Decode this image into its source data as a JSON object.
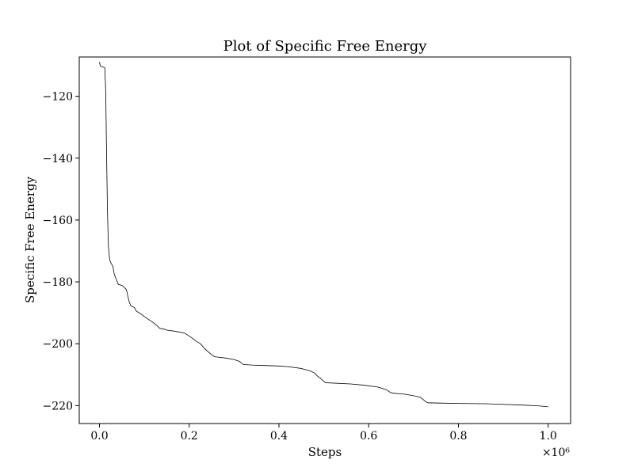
{
  "chart_data": {
    "type": "line",
    "title": "Plot of Specific Free Energy",
    "xlabel": "Steps",
    "ylabel": "Specific Free Energy",
    "x_scale_label": "×10⁶",
    "x_scale_factor": 1000000,
    "xlim": [
      -45000,
      1050000
    ],
    "ylim": [
      -225.8,
      -107.3
    ],
    "x_ticks": [
      0,
      200000,
      400000,
      600000,
      800000,
      1000000
    ],
    "x_tick_labels": [
      "0.0",
      "0.2",
      "0.4",
      "0.6",
      "0.8",
      "1.0"
    ],
    "y_ticks": [
      -120,
      -140,
      -160,
      -180,
      -200,
      -220
    ],
    "y_tick_labels": [
      "−120",
      "−140",
      "−160",
      "−180",
      "−200",
      "−220"
    ],
    "grid": false,
    "series": [
      {
        "color": "#000000",
        "x": [
          0,
          2000,
          3000,
          12000,
          14000,
          16000,
          18000,
          20000,
          23000,
          26000,
          30000,
          33000,
          37000,
          42000,
          47000,
          52000,
          60000,
          66000,
          70000,
          74000,
          78000,
          82000,
          88000,
          92000,
          98000,
          110000,
          122000,
          128000,
          134000,
          140000,
          145000,
          150000,
          170000,
          190000,
          200000,
          208000,
          214000,
          225000,
          234000,
          240000,
          248000,
          255000,
          262000,
          280000,
          300000,
          312000,
          320000,
          340000,
          360000,
          400000,
          420000,
          450000,
          470000,
          480000,
          486000,
          492000,
          500000,
          504000,
          530000,
          560000,
          590000,
          620000,
          640000,
          648000,
          654000,
          680000,
          700000,
          715000,
          722000,
          728000,
          732000,
          760000,
          800000,
          860000,
          900000,
          940000,
          980000,
          1000000
        ],
        "y": [
          -108.9,
          -110.3,
          -110.3,
          -110.8,
          -118.5,
          -140,
          -158,
          -168.5,
          -173,
          -174,
          -175,
          -177.5,
          -179,
          -180.8,
          -181,
          -181.3,
          -182.5,
          -186.3,
          -187.8,
          -188,
          -188.3,
          -189.4,
          -190,
          -190.3,
          -191,
          -192.2,
          -193.4,
          -194.1,
          -195,
          -195.2,
          -195.3,
          -195.6,
          -196,
          -196.6,
          -197.5,
          -198.3,
          -199,
          -200,
          -201.5,
          -202.3,
          -203.3,
          -204.1,
          -204.3,
          -204.6,
          -205.1,
          -205.7,
          -206.7,
          -206.9,
          -207,
          -207.2,
          -207.4,
          -208,
          -208.8,
          -209.5,
          -210.5,
          -211.1,
          -212.2,
          -212.6,
          -212.8,
          -213,
          -213.4,
          -214,
          -214.9,
          -215.7,
          -216,
          -216.3,
          -216.8,
          -217.3,
          -218.1,
          -218.8,
          -219.1,
          -219.2,
          -219.3,
          -219.4,
          -219.6,
          -219.8,
          -220.1,
          -220.4
        ]
      }
    ]
  }
}
